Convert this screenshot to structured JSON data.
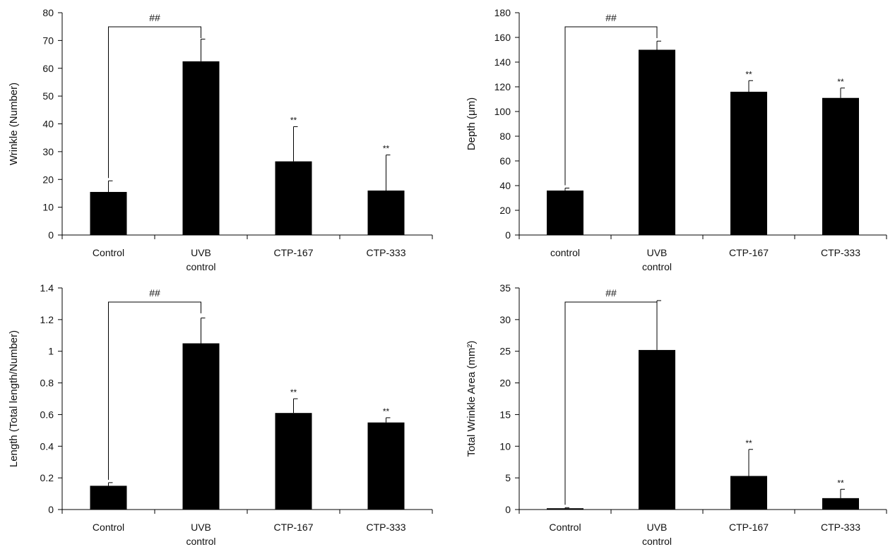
{
  "chart_data": [
    {
      "type": "bar",
      "categories": [
        [
          "Control"
        ],
        [
          "UVB",
          "control"
        ],
        [
          "CTP-167"
        ],
        [
          "CTP-333"
        ]
      ],
      "values": [
        15.5,
        62.5,
        26.5,
        16
      ],
      "errors": [
        4,
        8,
        12.5,
        12.8
      ],
      "significance": [
        "",
        "",
        "**",
        "**"
      ],
      "bracket": {
        "label": "##",
        "from": 0,
        "to": 1
      },
      "ylabel": "Wrinkle (Number)",
      "ylim": [
        0,
        80
      ],
      "yticks": [
        "0",
        "10",
        "20",
        "30",
        "40",
        "50",
        "60",
        "70",
        "80"
      ],
      "color": "#000000"
    },
    {
      "type": "bar",
      "categories": [
        [
          "control"
        ],
        [
          "UVB",
          "control"
        ],
        [
          "CTP-167"
        ],
        [
          "CTP-333"
        ]
      ],
      "values": [
        36,
        150,
        116,
        111
      ],
      "errors": [
        2,
        7,
        9,
        8
      ],
      "significance": [
        "",
        "",
        "**",
        "**"
      ],
      "bracket": {
        "label": "##",
        "from": 0,
        "to": 1
      },
      "ylabel": "Depth (μm)",
      "ylim": [
        0,
        180
      ],
      "yticks": [
        "0",
        "20",
        "40",
        "60",
        "80",
        "100",
        "120",
        "140",
        "160",
        "180"
      ],
      "color": "#000000"
    },
    {
      "type": "bar",
      "categories": [
        [
          "Control"
        ],
        [
          "UVB",
          "control"
        ],
        [
          "CTP-167"
        ],
        [
          "CTP-333"
        ]
      ],
      "values": [
        0.15,
        1.05,
        0.61,
        0.55
      ],
      "errors": [
        0.02,
        0.16,
        0.09,
        0.03
      ],
      "significance": [
        "",
        "",
        "**",
        "**"
      ],
      "bracket": {
        "label": "##",
        "from": 0,
        "to": 1
      },
      "ylabel": "Length (Total length/Number)",
      "ylim": [
        0,
        1.4
      ],
      "yticks": [
        "0",
        "0.2",
        "0.4",
        "0.6",
        "0.8",
        "1",
        "1.2",
        "1.4"
      ],
      "color": "#000000"
    },
    {
      "type": "bar",
      "categories": [
        [
          "Control"
        ],
        [
          "UVB",
          "control"
        ],
        [
          "CTP-167"
        ],
        [
          "CTP-333"
        ]
      ],
      "values": [
        0.2,
        25.2,
        5.3,
        1.8
      ],
      "errors": [
        0.1,
        7.8,
        4.2,
        1.4
      ],
      "significance": [
        "",
        "",
        "**",
        "**"
      ],
      "bracket": {
        "label": "##",
        "from": 0,
        "to": 1
      },
      "ylabel": "Total Wrinkle Area (mm²)",
      "ylim": [
        0,
        35
      ],
      "yticks": [
        "0",
        "5",
        "10",
        "15",
        "20",
        "25",
        "30",
        "35"
      ],
      "color": "#000000"
    }
  ]
}
